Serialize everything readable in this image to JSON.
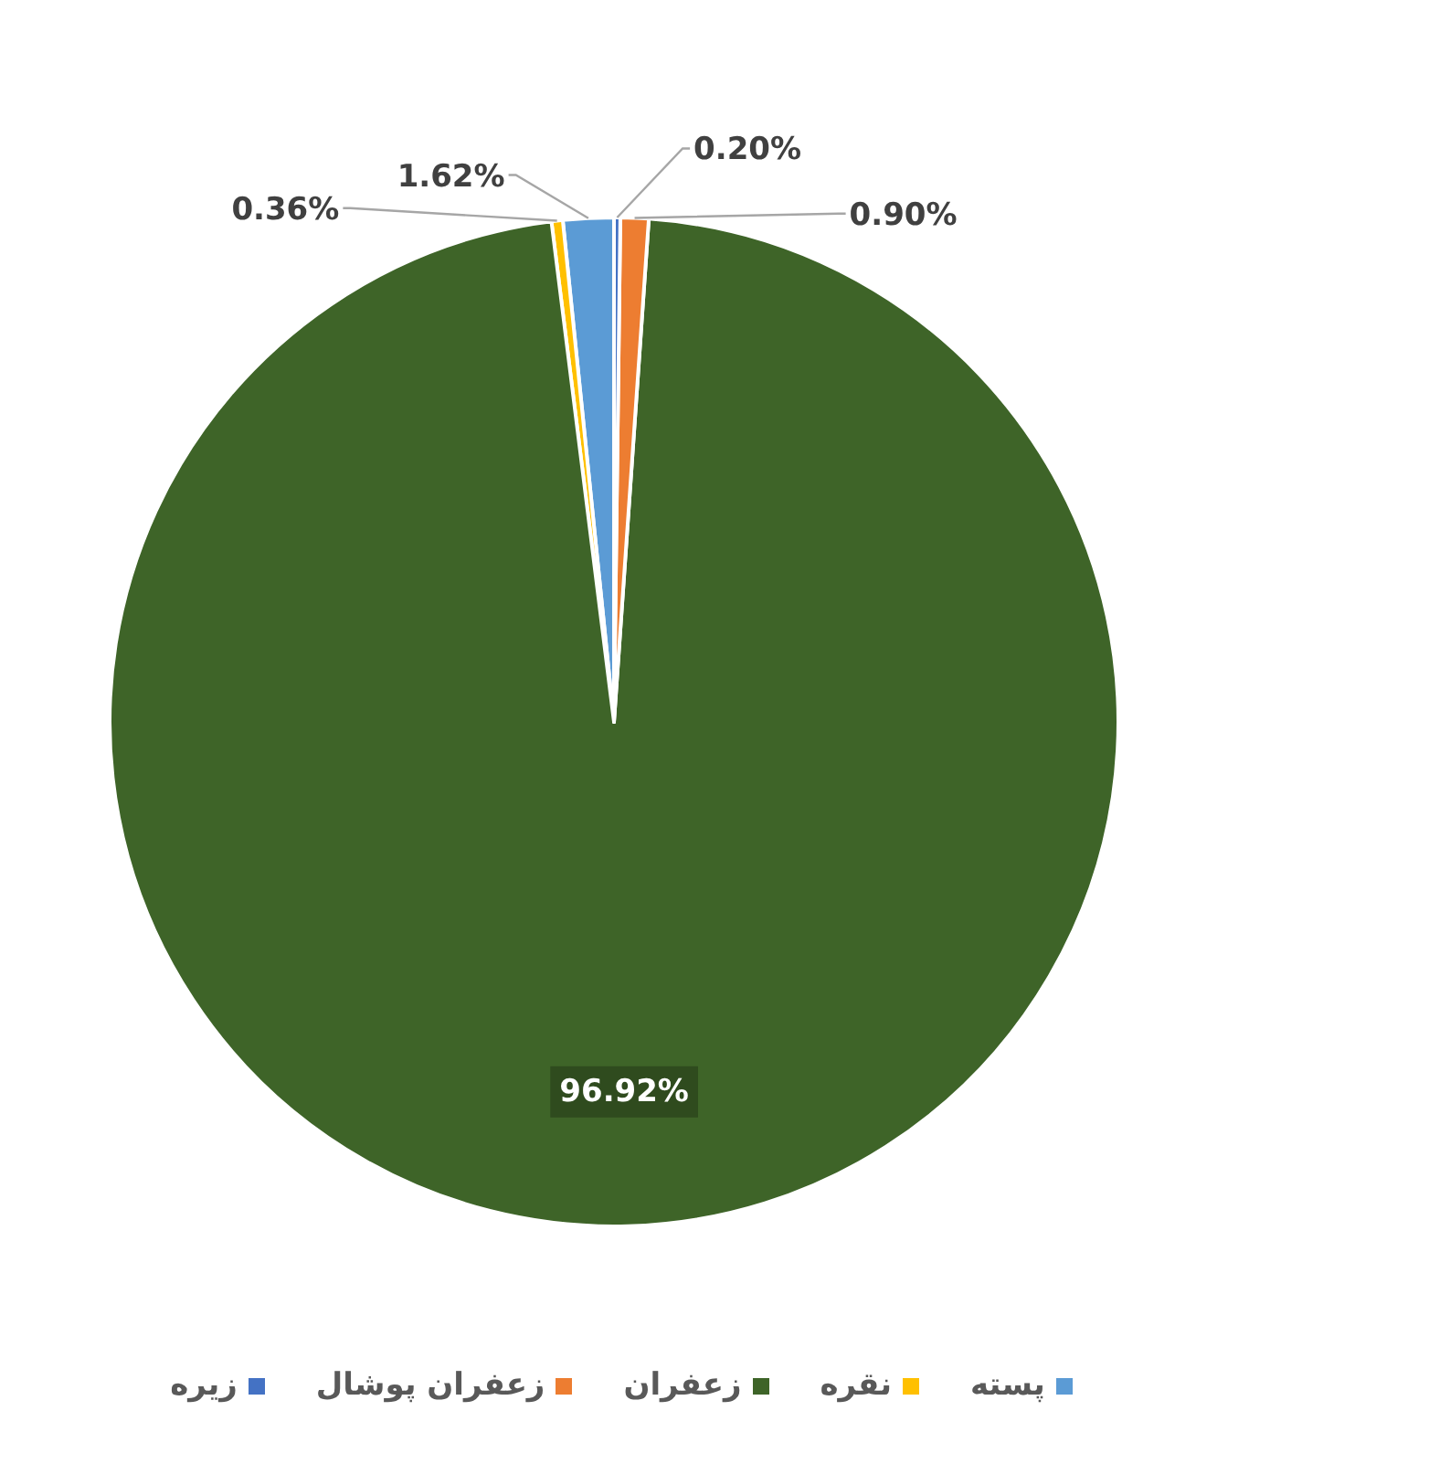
{
  "chart_data": {
    "type": "pie",
    "categories": [
      "پسته",
      "نقره",
      "زعفران",
      "زعفران پوشال",
      "زیره"
    ],
    "values": [
      1.62,
      0.36,
      96.92,
      0.9,
      0.2
    ],
    "colors": [
      "#5b9bd5",
      "#ffc000",
      "#3e6428",
      "#ed7d31",
      "#4472c4"
    ],
    "value_labels": [
      "1.62%",
      "0.36%",
      "96.92%",
      "0.90%",
      "0.20%"
    ],
    "legend": "bottom"
  }
}
